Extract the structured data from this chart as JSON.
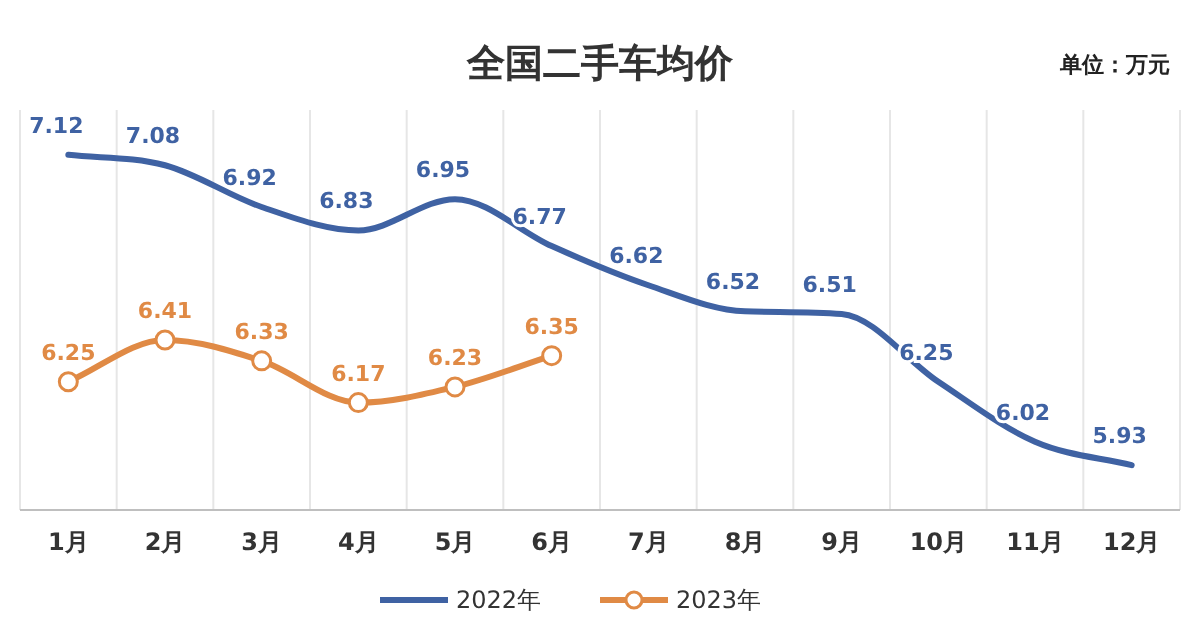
{
  "chart_data": {
    "type": "line",
    "title": "全国二手车均价",
    "annotations": [
      "单位：万元"
    ],
    "categories": [
      "1月",
      "2月",
      "3月",
      "4月",
      "5月",
      "6月",
      "7月",
      "8月",
      "9月",
      "10月",
      "11月",
      "12月"
    ],
    "series": [
      {
        "name": "2022年",
        "color": "#3f62a3",
        "marker": "none",
        "values": [
          7.12,
          7.08,
          6.92,
          6.83,
          6.95,
          6.77,
          6.62,
          6.52,
          6.51,
          6.25,
          6.02,
          5.93
        ]
      },
      {
        "name": "2023年",
        "color": "#e08a45",
        "marker": "circle",
        "values": [
          6.25,
          6.41,
          6.33,
          6.17,
          6.23,
          6.35,
          null,
          null,
          null,
          null,
          null,
          null
        ]
      }
    ],
    "data_labels": true,
    "grid": "x",
    "legend": "bottom",
    "line_style": "solid"
  }
}
